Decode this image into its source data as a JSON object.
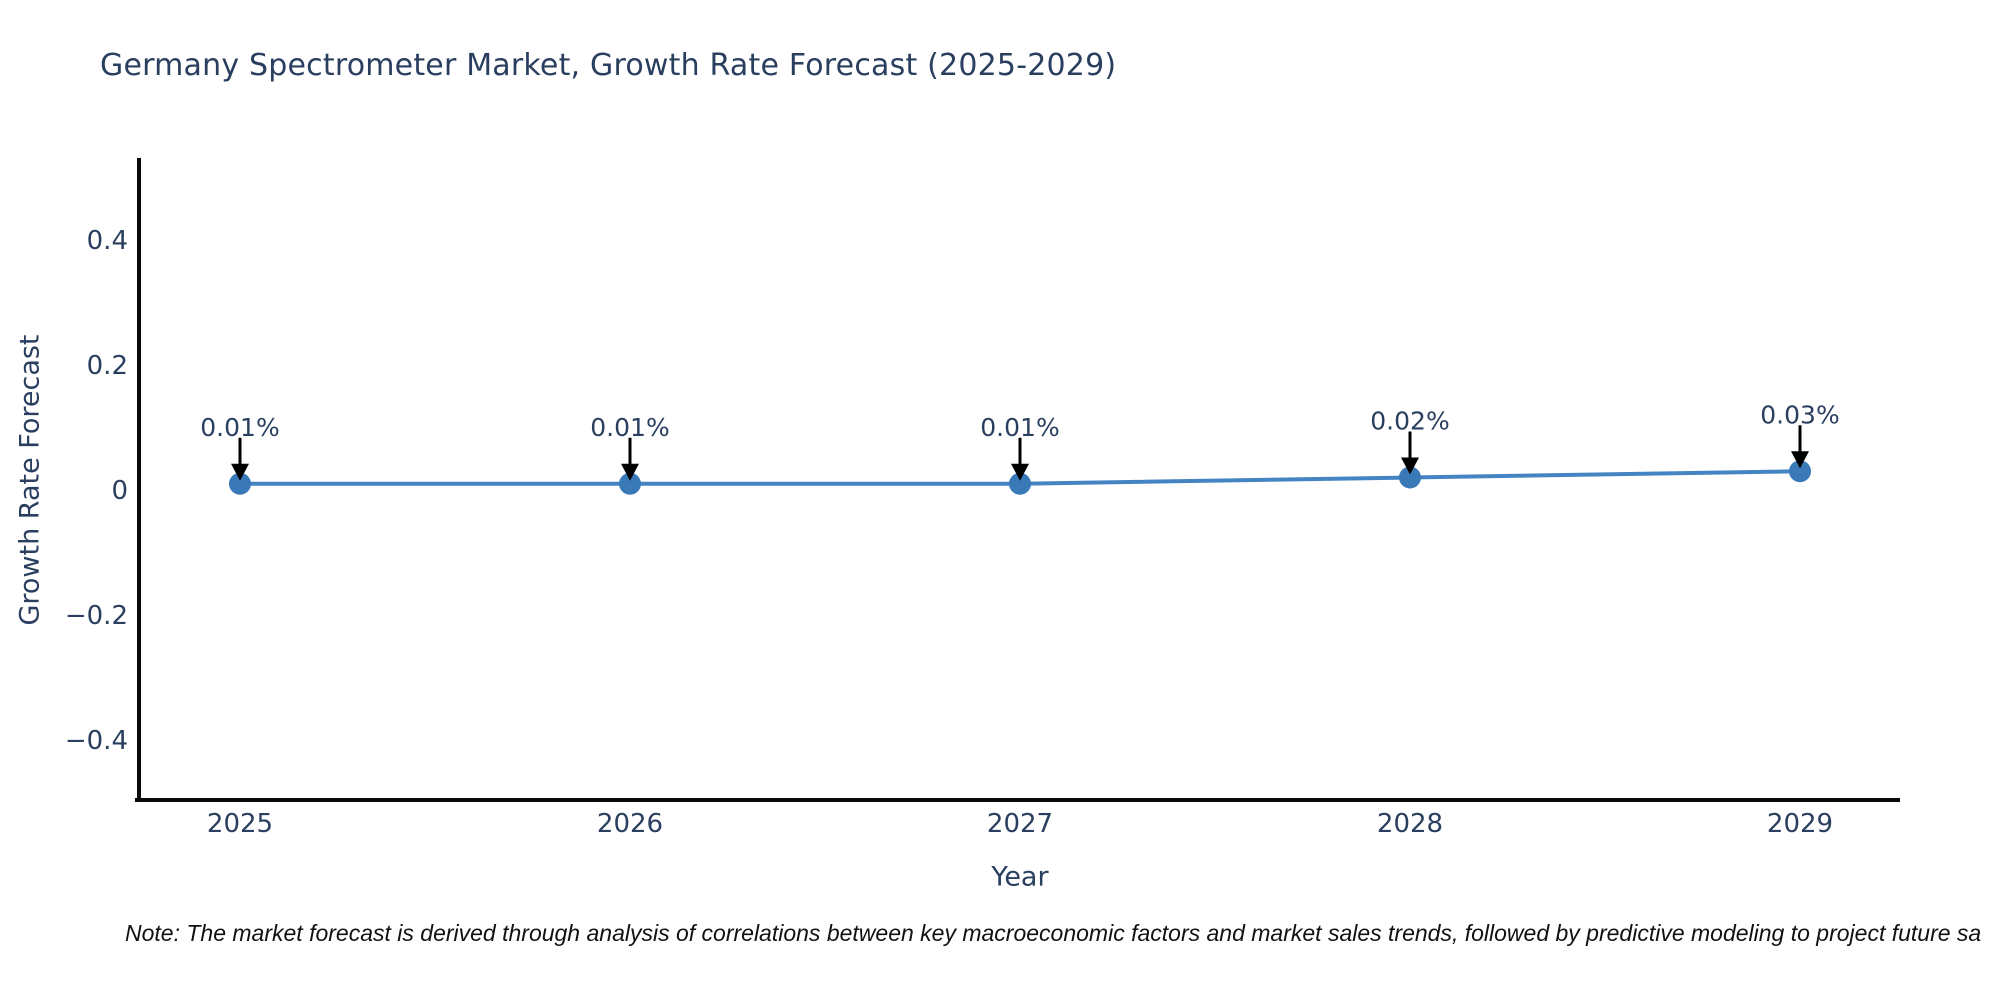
{
  "note": "Note: The market forecast is derived through analysis of correlations between key macroeconomic factors and market sales trends, followed by predictive modeling to project future sa",
  "chart_data": {
    "type": "line",
    "title": "Germany Spectrometer Market, Growth Rate Forecast (2025-2029)",
    "xlabel": "Year",
    "ylabel": "Growth Rate Forecast",
    "x": [
      "2025",
      "2026",
      "2027",
      "2028",
      "2029"
    ],
    "series": [
      {
        "name": "Growth Rate Forecast",
        "values": [
          0.01,
          0.01,
          0.01,
          0.02,
          0.03
        ]
      }
    ],
    "annotations": [
      "0.01%",
      "0.01%",
      "0.01%",
      "0.02%",
      "0.03%"
    ],
    "yticks": [
      0.4,
      0.2,
      0,
      -0.2,
      -0.4
    ],
    "ytick_labels": [
      "0.4",
      "0.2",
      "0",
      "−0.2",
      "−0.4"
    ],
    "ylim": [
      -0.5,
      0.53
    ],
    "grid": false,
    "legend": false,
    "colors": {
      "line": "#4484c2",
      "marker": "#3a79b8",
      "axis": "#0a0a0a",
      "text": "#2a3f5f",
      "annotation_arrow": "#000000"
    }
  }
}
